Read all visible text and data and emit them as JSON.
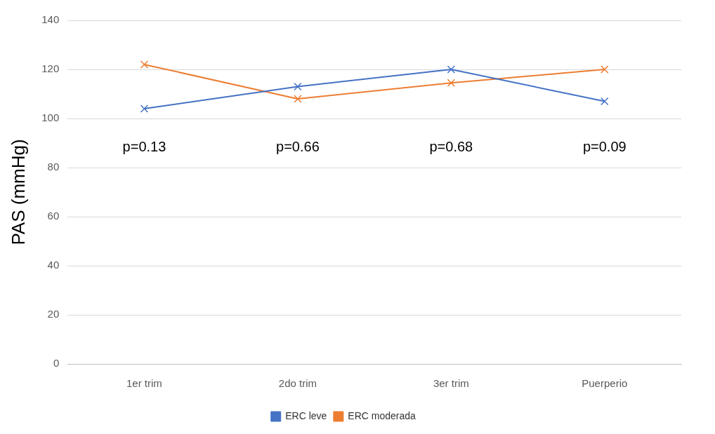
{
  "chart_data": {
    "type": "line",
    "ylabel": "PAS (mmHg)",
    "categories": [
      "1er trim",
      "2do trim",
      "3er trim",
      "Puerperio"
    ],
    "series": [
      {
        "name": "ERC leve",
        "color": "#4472c4",
        "values": [
          104,
          113,
          120,
          107
        ]
      },
      {
        "name": "ERC moderada",
        "color": "#ed7d31",
        "values": [
          122,
          108,
          114.5,
          120
        ]
      }
    ],
    "ylim": [
      0,
      140
    ],
    "yticks": [
      0,
      20,
      40,
      60,
      80,
      100,
      120,
      140
    ],
    "grid": "y",
    "legend": "bottom",
    "marker": "cross",
    "line_style": "solid",
    "annotations": [
      "p=0.13",
      "p=0.66",
      "p=0.68",
      "p=0.09"
    ]
  }
}
